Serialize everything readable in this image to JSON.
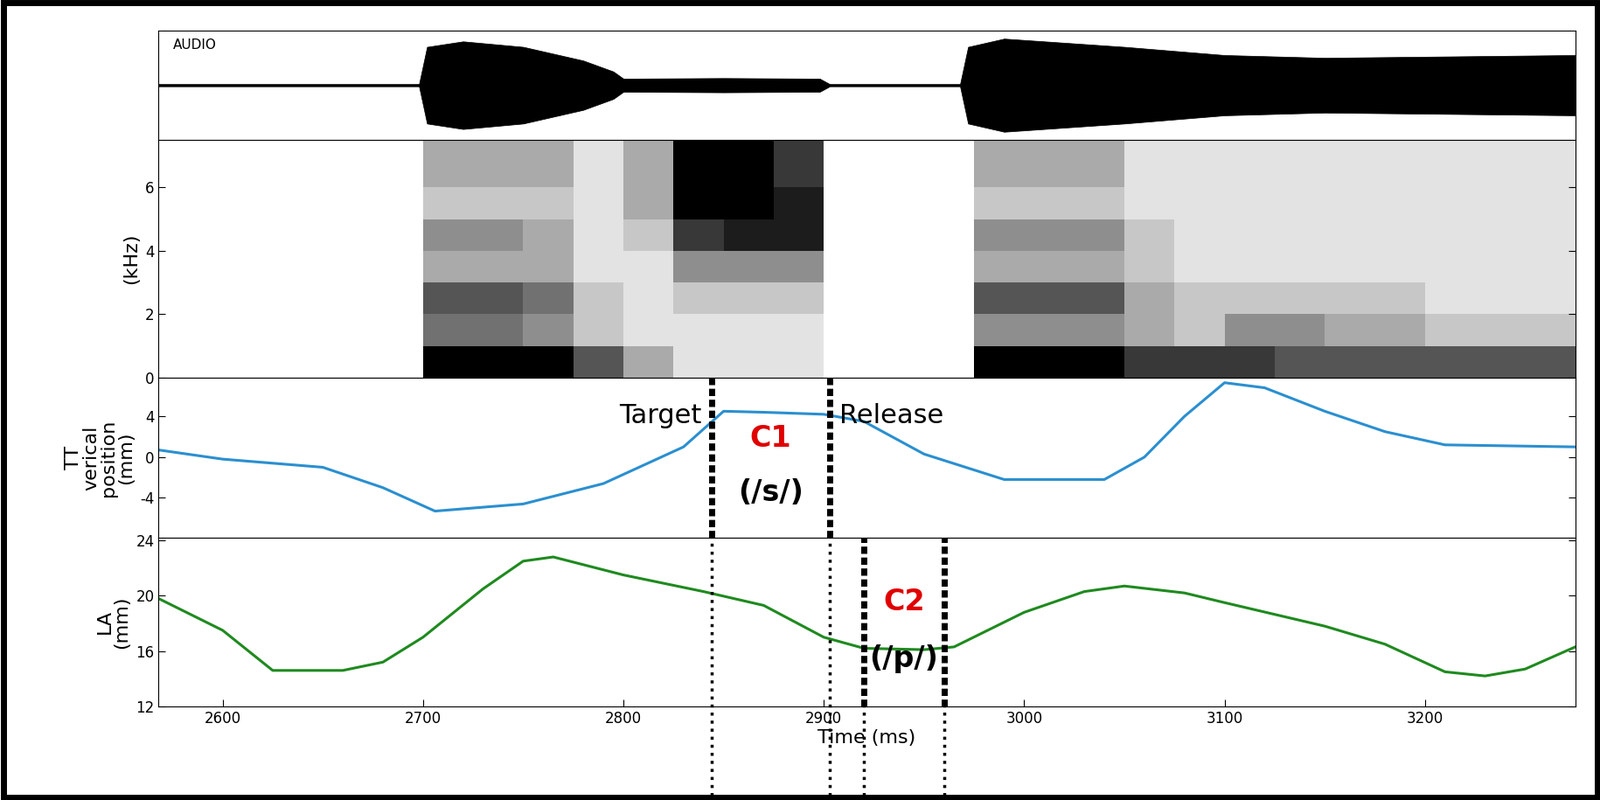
{
  "chart_data": [
    {
      "type": "area",
      "title": "AUDIO",
      "color": "#000000",
      "x": [
        2568,
        2698,
        2702,
        2720,
        2750,
        2780,
        2795,
        2800,
        2850,
        2898,
        2903,
        2968,
        2972,
        2990,
        3050,
        3100,
        3150,
        3275
      ],
      "values": [
        0.02,
        0.02,
        0.7,
        0.8,
        0.7,
        0.45,
        0.25,
        0.12,
        0.13,
        0.12,
        0.02,
        0.02,
        0.7,
        0.85,
        0.7,
        0.55,
        0.5,
        0.55
      ],
      "xlim": [
        2568,
        3275
      ],
      "ylim": [
        -1,
        1
      ],
      "tick_labels": false
    },
    {
      "type": "heatmap",
      "y_label": "(kHz)",
      "xbins": [
        2575,
        2600,
        2625,
        2650,
        2675,
        2700,
        2725,
        2750,
        2775,
        2800,
        2825,
        2850,
        2875,
        2900,
        2925,
        2950,
        2975,
        3000,
        3025,
        3050,
        3075,
        3100,
        3125,
        3150,
        3175,
        3200,
        3225,
        3250,
        3275
      ],
      "ybins": [
        0,
        1,
        2,
        3,
        4,
        5,
        6,
        7.5
      ],
      "cells": [
        [
          0,
          0,
          0,
          0,
          0,
          0.9,
          0.9,
          0.9,
          0.6,
          0.3,
          0.1,
          0.1,
          0.1,
          0,
          0,
          0,
          0.9,
          0.9,
          0.9,
          0.7,
          0.7,
          0.7,
          0.6,
          0.6,
          0.6,
          0.6,
          0.6,
          0.6
        ],
        [
          0,
          0,
          0,
          0,
          0,
          0.5,
          0.5,
          0.4,
          0.2,
          0.1,
          0.1,
          0.1,
          0.1,
          0,
          0,
          0,
          0.4,
          0.4,
          0.4,
          0.3,
          0.2,
          0.4,
          0.4,
          0.3,
          0.3,
          0.2,
          0.2,
          0.2
        ],
        [
          0,
          0,
          0,
          0,
          0,
          0.6,
          0.6,
          0.5,
          0.2,
          0.1,
          0.2,
          0.2,
          0.2,
          0,
          0,
          0,
          0.6,
          0.6,
          0.6,
          0.3,
          0.2,
          0.2,
          0.2,
          0.2,
          0.2,
          0.1,
          0.1,
          0.1
        ],
        [
          0,
          0,
          0,
          0,
          0,
          0.3,
          0.3,
          0.3,
          0.1,
          0.1,
          0.4,
          0.4,
          0.4,
          0,
          0,
          0,
          0.3,
          0.3,
          0.3,
          0.2,
          0.1,
          0.1,
          0.1,
          0.1,
          0.1,
          0.1,
          0.1,
          0.1
        ],
        [
          0,
          0,
          0,
          0,
          0,
          0.4,
          0.4,
          0.3,
          0.1,
          0.2,
          0.7,
          0.8,
          0.8,
          0,
          0,
          0,
          0.4,
          0.4,
          0.4,
          0.2,
          0.1,
          0.1,
          0.1,
          0.1,
          0.1,
          0.1,
          0.1,
          0.1
        ],
        [
          0,
          0,
          0,
          0,
          0,
          0.2,
          0.2,
          0.2,
          0.1,
          0.3,
          0.9,
          0.9,
          0.8,
          0,
          0,
          0,
          0.2,
          0.2,
          0.2,
          0.1,
          0.1,
          0.1,
          0.1,
          0.1,
          0.1,
          0.1,
          0.1,
          0.1
        ],
        [
          0,
          0,
          0,
          0,
          0,
          0.3,
          0.3,
          0.3,
          0.1,
          0.3,
          0.9,
          0.9,
          0.7,
          0,
          0,
          0,
          0.3,
          0.3,
          0.3,
          0.1,
          0.1,
          0.1,
          0.1,
          0.1,
          0.1,
          0.1,
          0.1,
          0.1
        ]
      ],
      "xlim": [
        2568,
        3275
      ],
      "ylim": [
        0,
        7.5
      ],
      "yticks": [
        0,
        2,
        4,
        6
      ],
      "tick_labels": "y"
    },
    {
      "type": "line",
      "y_label": "TT\nverical\nposition\n(mm)",
      "color": "#2a8fd0",
      "x": [
        2568,
        2600,
        2650,
        2680,
        2706,
        2750,
        2790,
        2830,
        2850,
        2870,
        2900,
        2920,
        2950,
        2990,
        3040,
        3060,
        3080,
        3100,
        3120,
        3150,
        3180,
        3210,
        3275
      ],
      "values": [
        0.7,
        -0.2,
        -1.0,
        -3.0,
        -5.3,
        -4.6,
        -2.6,
        1.0,
        4.5,
        4.4,
        4.2,
        3.5,
        0.3,
        -2.2,
        -2.2,
        0.0,
        4.0,
        7.3,
        6.8,
        4.5,
        2.5,
        1.2,
        1.0
      ],
      "xlim": [
        2568,
        3275
      ],
      "ylim": [
        -7.9,
        7.8
      ],
      "yticks": [
        -4,
        0,
        4
      ],
      "tick_labels": "y",
      "interval": {
        "start": 2844,
        "end": 2903,
        "label": "C1",
        "sublabel": "(/s/)",
        "start_label": "Target",
        "end_label": "Release",
        "color": "#e00000"
      }
    },
    {
      "type": "line",
      "y_label": "LA\n(mm)",
      "x_label": "Time (ms)",
      "color": "#1e8a1e",
      "x": [
        2568,
        2600,
        2625,
        2660,
        2680,
        2700,
        2730,
        2750,
        2765,
        2800,
        2840,
        2870,
        2900,
        2920,
        2950,
        2965,
        3000,
        3030,
        3050,
        3080,
        3100,
        3150,
        3180,
        3210,
        3230,
        3250,
        3275
      ],
      "values": [
        19.8,
        17.5,
        14.6,
        14.6,
        15.2,
        17.0,
        20.5,
        22.5,
        22.8,
        21.5,
        20.3,
        19.3,
        17.0,
        16.2,
        16.1,
        16.3,
        18.8,
        20.3,
        20.7,
        20.2,
        19.5,
        17.8,
        16.5,
        14.5,
        14.2,
        14.7,
        16.3
      ],
      "xlim": [
        2568,
        3275
      ],
      "ylim": [
        12,
        24.2
      ],
      "xticks": [
        2600,
        2700,
        2800,
        2900,
        3000,
        3100,
        3200
      ],
      "yticks": [
        12,
        16,
        20,
        24
      ],
      "interval": {
        "start": 2920,
        "end": 2960,
        "label": "C2",
        "sublabel": "(/p/)",
        "color": "#e00000"
      }
    }
  ]
}
